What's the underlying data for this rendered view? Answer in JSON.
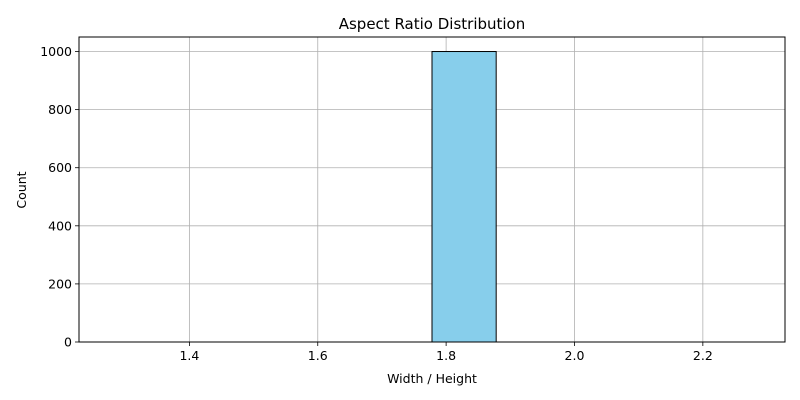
{
  "chart_data": {
    "type": "bar",
    "title": "Aspect Ratio Distribution",
    "xlabel": "Width / Height",
    "ylabel": "Count",
    "xlim": [
      1.228,
      2.328
    ],
    "ylim": [
      0,
      1050
    ],
    "xticks": [
      "1.4",
      "1.6",
      "1.8",
      "2.0",
      "2.2"
    ],
    "yticks": [
      "0",
      "200",
      "400",
      "600",
      "800",
      "1000"
    ],
    "bins": [
      {
        "x0": 1.278,
        "x1": 1.378,
        "value": 0
      },
      {
        "x0": 1.378,
        "x1": 1.478,
        "value": 0
      },
      {
        "x0": 1.478,
        "x1": 1.578,
        "value": 0
      },
      {
        "x0": 1.578,
        "x1": 1.678,
        "value": 0
      },
      {
        "x0": 1.678,
        "x1": 1.778,
        "value": 0
      },
      {
        "x0": 1.778,
        "x1": 1.878,
        "value": 1000
      },
      {
        "x0": 1.878,
        "x1": 1.978,
        "value": 0
      },
      {
        "x0": 1.978,
        "x1": 2.078,
        "value": 0
      },
      {
        "x0": 2.078,
        "x1": 2.178,
        "value": 0
      },
      {
        "x0": 2.178,
        "x1": 2.278,
        "value": 0
      }
    ],
    "grid": true,
    "bar_color": "#87ceeb",
    "edge_color": "#000000"
  }
}
